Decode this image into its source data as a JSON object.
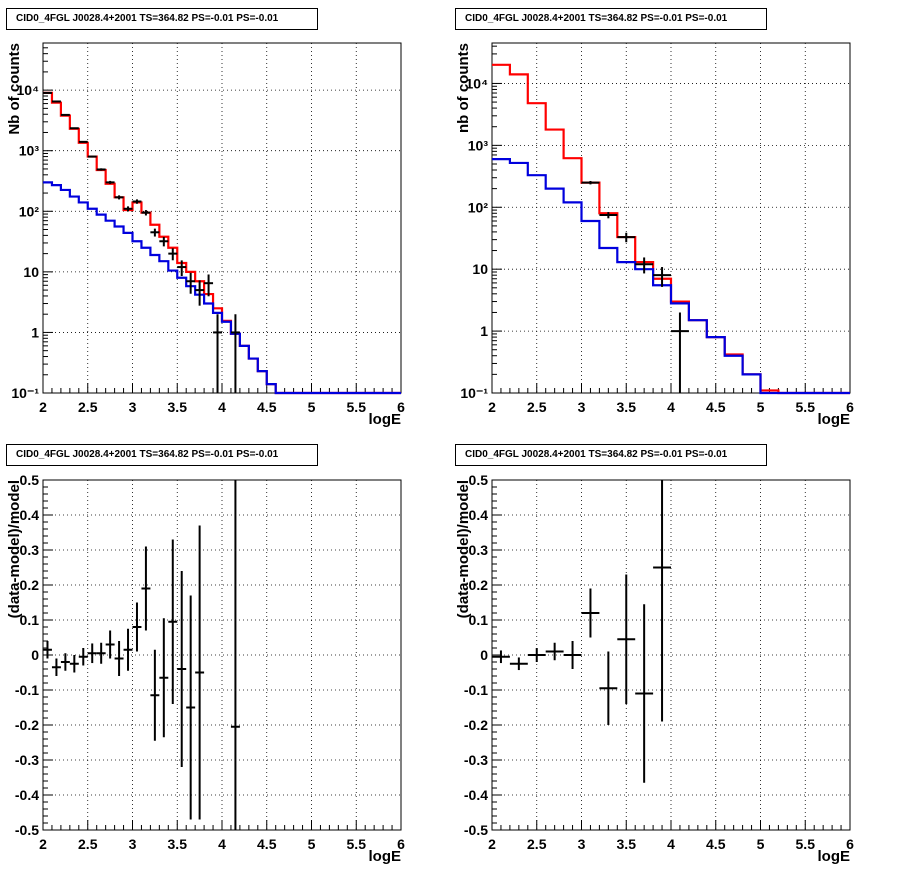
{
  "colors": {
    "data": "#000000",
    "model_total": "#ff0000",
    "model_component": "#0000dd"
  },
  "chart_data": [
    {
      "type": "line",
      "title": "CID0_4FGL J0028.4+2001 TS=364.82 PS=-0.01 PS=-0.01",
      "xlabel": "logE",
      "ylabel": "Nb of counts",
      "xlim": [
        2,
        6
      ],
      "ylim": [
        0.1,
        60000
      ],
      "yscale": "log",
      "grid": true,
      "x_ticks": [
        "2",
        "2.5",
        "3",
        "3.5",
        "4",
        "4.5",
        "5",
        "5.5",
        "6"
      ],
      "y_ticks": [
        {
          "value": 0.1,
          "label": "10⁻¹"
        },
        {
          "value": 1,
          "label": "1"
        },
        {
          "value": 10,
          "label": "10"
        },
        {
          "value": 100,
          "label": "10²"
        },
        {
          "value": 1000,
          "label": "10³"
        },
        {
          "value": 10000,
          "label": "10⁴"
        }
      ],
      "bin_edges": [
        2,
        2.1,
        2.2,
        2.3,
        2.4,
        2.5,
        2.6,
        2.7,
        2.8,
        2.9,
        3,
        3.1,
        3.2,
        3.3,
        3.4,
        3.5,
        3.6,
        3.7,
        3.8,
        3.9,
        4,
        4.1,
        4.2,
        4.3,
        4.4,
        4.5,
        4.6,
        4.7,
        4.8,
        4.9,
        5,
        5.1,
        5.2,
        5.3,
        5.4,
        5.5,
        5.6,
        5.7,
        5.8,
        5.9,
        6
      ],
      "series": [
        {
          "role": "model_total",
          "values": [
            9000,
            6200,
            3800,
            2300,
            1350,
            800,
            480,
            285,
            170,
            105,
            140,
            95,
            60,
            38,
            25,
            14,
            10,
            7,
            4.3,
            2.5,
            1.55,
            0.95,
            0.6,
            0.37,
            0.23,
            0.14,
            0.1,
            0.1,
            0.1,
            0.1,
            0.1,
            0.1,
            0.1,
            0.1,
            0.1,
            0.1,
            0.1,
            0.1,
            0.1,
            0.1
          ]
        },
        {
          "role": "model_component",
          "values": [
            300,
            270,
            225,
            175,
            140,
            110,
            88,
            70,
            56,
            44,
            32,
            25,
            19,
            15,
            10.5,
            8,
            5.8,
            4.2,
            3,
            2.1,
            1.5,
            0.95,
            0.6,
            0.37,
            0.23,
            0.14,
            0.1,
            0.1,
            0.1,
            0.1,
            0.1,
            0.1,
            0.1,
            0.1,
            0.1,
            0.1,
            0.1,
            0.1,
            0.1,
            0.1
          ]
        },
        {
          "role": "data",
          "points": [
            {
              "x": 2.05,
              "y": 9000
            },
            {
              "x": 2.15,
              "y": 6500
            },
            {
              "x": 2.25,
              "y": 3900
            },
            {
              "x": 2.35,
              "y": 2350
            },
            {
              "x": 2.45,
              "y": 1400
            },
            {
              "x": 2.55,
              "y": 800
            },
            {
              "x": 2.65,
              "y": 490
            },
            {
              "x": 2.75,
              "y": 300
            },
            {
              "x": 2.85,
              "y": 170
            },
            {
              "x": 2.95,
              "y": 110
            },
            {
              "x": 3.05,
              "y": 145
            },
            {
              "x": 3.15,
              "y": 95
            },
            {
              "x": 3.25,
              "y": 45
            },
            {
              "x": 3.35,
              "y": 32
            },
            {
              "x": 3.45,
              "y": 20
            },
            {
              "x": 3.55,
              "y": 12
            },
            {
              "x": 3.65,
              "y": 7
            },
            {
              "x": 3.75,
              "y": 5
            },
            {
              "x": 3.85,
              "y": 6.5
            },
            {
              "x": 3.95,
              "y": 1
            },
            {
              "x": 4.15,
              "y": 1
            }
          ]
        }
      ]
    },
    {
      "type": "line",
      "title": "CID0_4FGL J0028.4+2001 TS=364.82 PS=-0.01 PS=-0.01",
      "xlabel": "logE",
      "ylabel": "nb of counts",
      "xlim": [
        2,
        6
      ],
      "ylim": [
        0.1,
        45000
      ],
      "yscale": "log",
      "grid": true,
      "x_ticks": [
        "2",
        "2.5",
        "3",
        "3.5",
        "4",
        "4.5",
        "5",
        "5.5",
        "6"
      ],
      "y_ticks": [
        {
          "value": 0.1,
          "label": "10⁻¹"
        },
        {
          "value": 1,
          "label": "1"
        },
        {
          "value": 10,
          "label": "10"
        },
        {
          "value": 100,
          "label": "10²"
        },
        {
          "value": 1000,
          "label": "10³"
        },
        {
          "value": 10000,
          "label": "10⁴"
        }
      ],
      "bin_edges": [
        2,
        2.2,
        2.4,
        2.6,
        2.8,
        3,
        3.2,
        3.4,
        3.6,
        3.8,
        4,
        4.2,
        4.4,
        4.6,
        4.8,
        5,
        5.2,
        5.4,
        5.6,
        5.8,
        6
      ],
      "series": [
        {
          "role": "model_total",
          "values": [
            20000,
            14000,
            4800,
            1800,
            620,
            250,
            80,
            33,
            13,
            7,
            3,
            1.5,
            0.8,
            0.42,
            0.2,
            0.11,
            0.1,
            0.1,
            0.1,
            0.1
          ]
        },
        {
          "role": "model_component",
          "values": [
            600,
            520,
            330,
            200,
            120,
            60,
            22,
            13,
            10,
            5.5,
            2.8,
            1.5,
            0.8,
            0.4,
            0.2,
            0.1,
            0.1,
            0.1,
            0.1,
            0.1
          ]
        },
        {
          "role": "data",
          "points": [
            {
              "x": 3.1,
              "y": 250
            },
            {
              "x": 3.3,
              "y": 75
            },
            {
              "x": 3.5,
              "y": 33
            },
            {
              "x": 3.7,
              "y": 12
            },
            {
              "x": 3.9,
              "y": 8
            },
            {
              "x": 4.1,
              "y": 1
            }
          ]
        }
      ]
    },
    {
      "type": "scatter",
      "title": "CID0_4FGL J0028.4+2001 TS=364.82 PS=-0.01 PS=-0.01",
      "xlabel": "logE",
      "ylabel": "(data-model)/model",
      "xlim": [
        2,
        6
      ],
      "ylim": [
        -0.5,
        0.5
      ],
      "grid": true,
      "x_ticks": [
        "2",
        "2.5",
        "3",
        "3.5",
        "4",
        "4.5",
        "5",
        "5.5",
        "6"
      ],
      "y_ticks": [
        "-0.5",
        "-0.4",
        "-0.3",
        "-0.2",
        "-0.1",
        "0",
        "0.1",
        "0.2",
        "0.3",
        "0.4",
        "0.5"
      ],
      "points": [
        {
          "x": 2.05,
          "xerr": 0.05,
          "y": 0.015,
          "yerr": 0.025
        },
        {
          "x": 2.15,
          "xerr": 0.05,
          "y": -0.035,
          "yerr": 0.025
        },
        {
          "x": 2.25,
          "xerr": 0.05,
          "y": -0.02,
          "yerr": 0.025
        },
        {
          "x": 2.35,
          "xerr": 0.05,
          "y": -0.025,
          "yerr": 0.025
        },
        {
          "x": 2.45,
          "xerr": 0.05,
          "y": -0.005,
          "yerr": 0.025
        },
        {
          "x": 2.55,
          "xerr": 0.05,
          "y": 0.005,
          "yerr": 0.028
        },
        {
          "x": 2.65,
          "xerr": 0.05,
          "y": 0.005,
          "yerr": 0.03
        },
        {
          "x": 2.75,
          "xerr": 0.05,
          "y": 0.03,
          "yerr": 0.04
        },
        {
          "x": 2.85,
          "xerr": 0.05,
          "y": -0.01,
          "yerr": 0.05
        },
        {
          "x": 2.95,
          "xerr": 0.05,
          "y": 0.015,
          "yerr": 0.06
        },
        {
          "x": 3.05,
          "xerr": 0.05,
          "y": 0.08,
          "yerr": 0.07
        },
        {
          "x": 3.15,
          "xerr": 0.05,
          "y": 0.19,
          "yerr": 0.12
        },
        {
          "x": 3.25,
          "xerr": 0.05,
          "y": -0.115,
          "yerr": 0.13
        },
        {
          "x": 3.35,
          "xerr": 0.05,
          "y": -0.065,
          "yerr": 0.17
        },
        {
          "x": 3.45,
          "xerr": 0.05,
          "y": 0.095,
          "yerr": 0.235
        },
        {
          "x": 3.55,
          "xerr": 0.05,
          "y": -0.04,
          "yerr": 0.28
        },
        {
          "x": 3.65,
          "xerr": 0.05,
          "y": -0.15,
          "yerr": 0.32
        },
        {
          "x": 3.75,
          "xerr": 0.05,
          "y": -0.05,
          "yerr": 0.42
        },
        {
          "x": 4.15,
          "xerr": 0.05,
          "y": -0.205,
          "yerr": 0.9
        }
      ]
    },
    {
      "type": "scatter",
      "title": "CID0_4FGL J0028.4+2001 TS=364.82 PS=-0.01 PS=-0.01",
      "xlabel": "logE",
      "ylabel": "(data-model)/model",
      "xlim": [
        2,
        6
      ],
      "ylim": [
        -0.5,
        0.5
      ],
      "grid": true,
      "x_ticks": [
        "2",
        "2.5",
        "3",
        "3.5",
        "4",
        "4.5",
        "5",
        "5.5",
        "6"
      ],
      "y_ticks": [
        "-0.5",
        "-0.4",
        "-0.3",
        "-0.2",
        "-0.1",
        "0",
        "0.1",
        "0.2",
        "0.3",
        "0.4",
        "0.5"
      ],
      "points": [
        {
          "x": 2.1,
          "xerr": 0.1,
          "y": -0.005,
          "yerr": 0.018
        },
        {
          "x": 2.3,
          "xerr": 0.1,
          "y": -0.025,
          "yerr": 0.018
        },
        {
          "x": 2.5,
          "xerr": 0.1,
          "y": 0.0,
          "yerr": 0.02
        },
        {
          "x": 2.7,
          "xerr": 0.1,
          "y": 0.01,
          "yerr": 0.025
        },
        {
          "x": 2.9,
          "xerr": 0.1,
          "y": 0.0,
          "yerr": 0.04
        },
        {
          "x": 3.1,
          "xerr": 0.1,
          "y": 0.12,
          "yerr": 0.07
        },
        {
          "x": 3.3,
          "xerr": 0.1,
          "y": -0.095,
          "yerr": 0.105
        },
        {
          "x": 3.5,
          "xerr": 0.1,
          "y": 0.045,
          "yerr": 0.185
        },
        {
          "x": 3.7,
          "xerr": 0.1,
          "y": -0.11,
          "yerr": 0.255
        },
        {
          "x": 3.9,
          "xerr": 0.1,
          "y": 0.25,
          "yerr": 0.44
        }
      ]
    }
  ]
}
